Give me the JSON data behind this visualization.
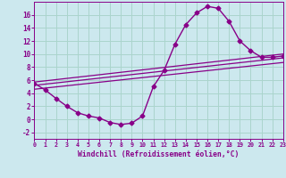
{
  "xlabel": "Windchill (Refroidissement éolien,°C)",
  "background_color": "#cce8ee",
  "grid_color": "#aad4cc",
  "line_color": "#880088",
  "xlim": [
    0,
    23
  ],
  "ylim": [
    -3,
    18
  ],
  "xticks": [
    0,
    1,
    2,
    3,
    4,
    5,
    6,
    7,
    8,
    9,
    10,
    11,
    12,
    13,
    14,
    15,
    16,
    17,
    18,
    19,
    20,
    21,
    22,
    23
  ],
  "yticks": [
    -2,
    0,
    2,
    4,
    6,
    8,
    10,
    12,
    14,
    16
  ],
  "curve1_x": [
    0,
    1,
    2,
    3,
    4,
    5,
    6,
    7,
    8,
    9,
    10,
    11,
    12,
    13,
    14,
    15,
    16,
    17,
    18,
    19,
    20,
    21,
    22,
    23
  ],
  "curve1_y": [
    5.5,
    4.5,
    3.2,
    2.0,
    1.0,
    0.5,
    0.2,
    -0.5,
    -0.8,
    -0.6,
    0.5,
    5.0,
    7.5,
    11.5,
    14.5,
    16.3,
    17.3,
    17.0,
    15.0,
    12.0,
    10.5,
    9.5,
    9.5,
    9.7
  ],
  "line2_x": [
    0,
    23
  ],
  "line2_y": [
    5.7,
    10.0
  ],
  "line3_x": [
    0,
    23
  ],
  "line3_y": [
    5.2,
    9.4
  ],
  "line4_x": [
    0,
    23
  ],
  "line4_y": [
    4.6,
    8.7
  ]
}
